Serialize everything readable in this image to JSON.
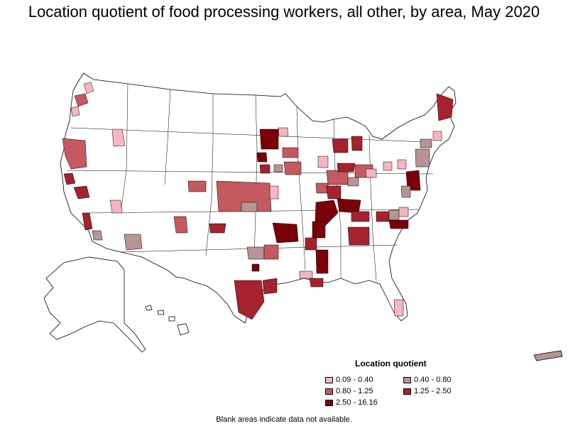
{
  "title": "Location quotient of food processing workers, all other, by area, May 2020",
  "legend": {
    "title": "Location quotient",
    "items": [
      {
        "label": "0.09 - 0.40",
        "color": "#f4b6c0"
      },
      {
        "label": "0.40 - 0.80",
        "color": "#b89494"
      },
      {
        "label": "0.80 - 1.25",
        "color": "#c45a5e"
      },
      {
        "label": "1.25 - 2.50",
        "color": "#a5222e"
      },
      {
        "label": "2.50 - 16.16",
        "color": "#7a0008"
      }
    ]
  },
  "note": "Blank areas indicate data not available."
}
